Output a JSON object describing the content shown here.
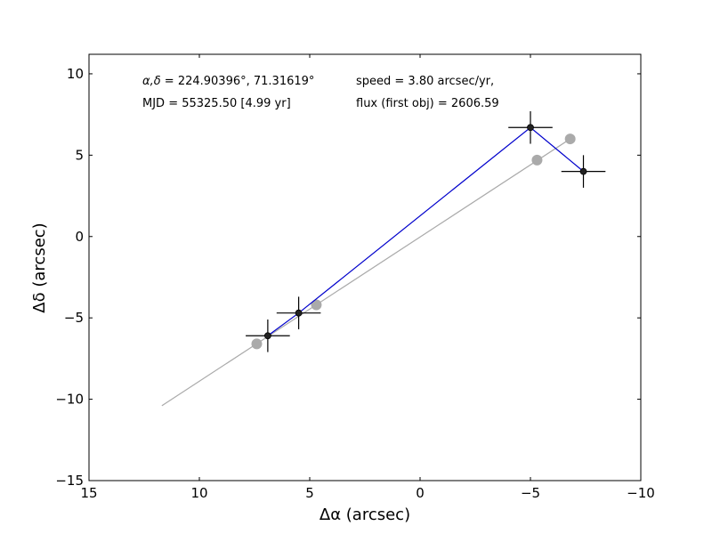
{
  "chart_data": {
    "type": "scatter",
    "xlabel": "Δα (arcsec)",
    "ylabel": "Δδ (arcsec)",
    "xlim": [
      15,
      -10
    ],
    "ylim": [
      -15,
      11.2
    ],
    "x_ticks": [
      15,
      10,
      5,
      0,
      -5,
      -10
    ],
    "x_tick_labels": [
      "15",
      "10",
      "5",
      "0",
      "−5",
      "−10"
    ],
    "y_ticks": [
      10,
      5,
      0,
      -5,
      -10,
      -15
    ],
    "y_tick_labels": [
      "10",
      "5",
      "0",
      "−5",
      "−10",
      "−15"
    ],
    "grid": false,
    "annotations": {
      "coords_prefix": "α,δ",
      "coords_value": " = 224.90396°, 71.31619°",
      "mjd": "MJD = 55325.50 [4.99 yr]",
      "speed": "speed = 3.80 arcsec/yr,",
      "flux": "flux (first obj) = 2606.59"
    },
    "series": [
      {
        "role": "observed",
        "color": "#0000cc",
        "marker_color": "#222222",
        "x": [
          6.9,
          5.5,
          -5.0,
          -7.4
        ],
        "y": [
          -6.1,
          -4.7,
          6.7,
          4.0
        ],
        "xerr": 1.0,
        "yerr": 1.0
      },
      {
        "role": "model",
        "color": "#aaaaaa",
        "line": {
          "x": [
            11.7,
            -6.8
          ],
          "y": [
            -10.4,
            6.0
          ]
        },
        "points": {
          "x": [
            7.4,
            4.7,
            -5.3,
            -6.8
          ],
          "y": [
            -6.6,
            -4.2,
            4.7,
            6.0
          ]
        }
      }
    ]
  }
}
